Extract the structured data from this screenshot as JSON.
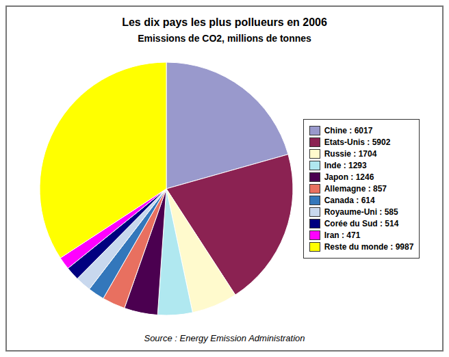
{
  "chart_data": {
    "type": "pie",
    "title": "Les dix pays les plus pollueurs en 2006",
    "subtitle": "Emissions de CO2, millions de tonnes",
    "annotations": [
      "Source : Energy Emission Administration"
    ],
    "categories": [
      "Chine : 6017",
      "Etats-Unis : 5902",
      "Russie : 1704",
      "Inde : 1293",
      "Japon : 1246",
      "Allemagne : 857",
      "Canada : 614",
      "Royaume-Uni : 585",
      "Corée du Sud : 514",
      "Iran : 471",
      "Reste du monde : 9987"
    ],
    "values": [
      6017,
      5902,
      1704,
      1293,
      1246,
      857,
      614,
      585,
      514,
      471,
      9987
    ],
    "colors": [
      "#9999cc",
      "#8b2252",
      "#fffacd",
      "#b0e8f0",
      "#4b0050",
      "#e87060",
      "#3377bb",
      "#c8d8ee",
      "#000080",
      "#ff00ff",
      "#ffff00"
    ],
    "legend": "right"
  }
}
